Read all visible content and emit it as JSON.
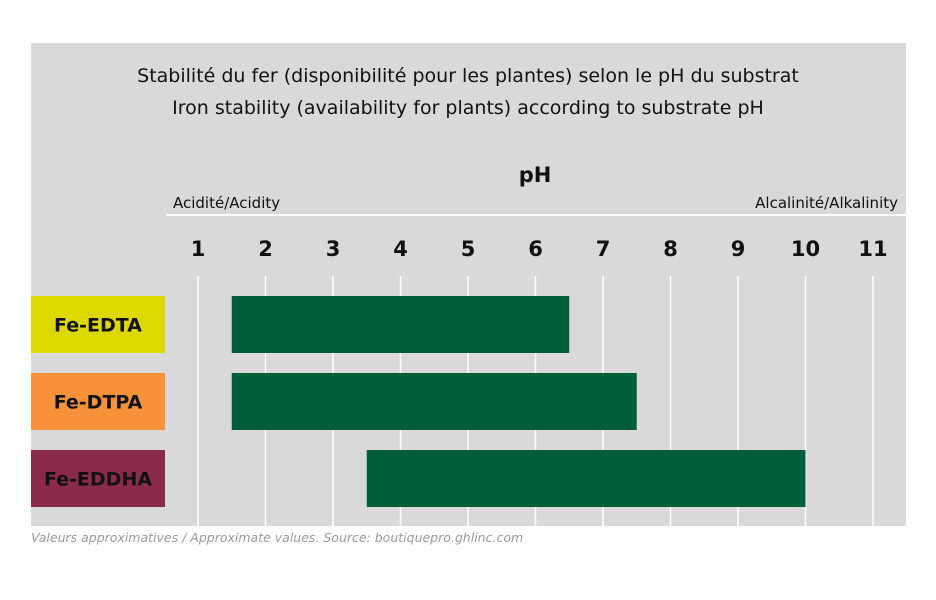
{
  "chart_data": {
    "type": "bar",
    "orientation": "horizontal-range",
    "title_lines": [
      "Stabilité du fer (disponibilité pour les plantes) selon le pH du substrat",
      "Iron stability (availability for plants) according to substrate pH"
    ],
    "xlabel": "pH",
    "left_annotation": "Acidité/Acidity",
    "right_annotation": "Alcalinité/Alkalinity",
    "x_ticks": [
      1,
      2,
      3,
      4,
      5,
      6,
      7,
      8,
      9,
      10,
      11
    ],
    "xlim": [
      1,
      11
    ],
    "grid": true,
    "categories": [
      "Fe-EDTA",
      "Fe-DTPA",
      "Fe-EDDHA"
    ],
    "category_colors": [
      "#dcd800",
      "#f7923a",
      "#8a2b4e"
    ],
    "ranges": [
      {
        "name": "Fe-EDTA",
        "start": 1.5,
        "end": 6.5
      },
      {
        "name": "Fe-DTPA",
        "start": 1.5,
        "end": 7.5
      },
      {
        "name": "Fe-EDDHA",
        "start": 3.5,
        "end": 10
      }
    ],
    "bar_color": "#005f3a",
    "background_color": "#d9d9d9",
    "footnote": "Valeurs approximatives / Approximate values. Source: boutiquepro.ghlinc.com"
  }
}
